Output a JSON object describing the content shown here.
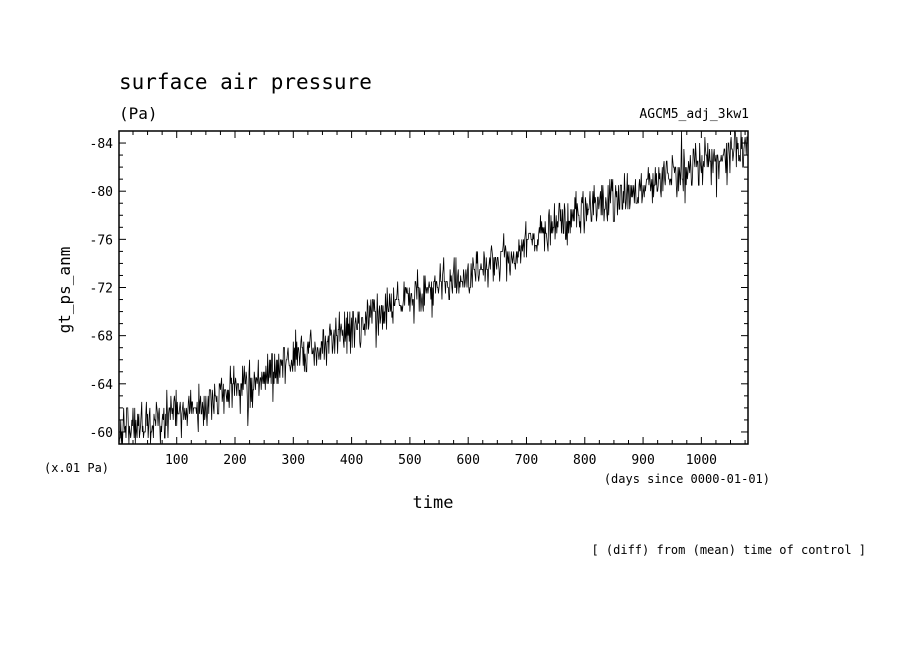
{
  "chart_data": {
    "type": "line",
    "title": "surface air pressure",
    "units": "(Pa)",
    "run_label": "AGCM5_adj_3kw1",
    "ylabel": "gt_ps_anm",
    "y_scale_note": "(x.01 Pa)",
    "xlabel": "time",
    "x_units_note": "(days since 0000-01-01)",
    "footer_note": "[ (diff) from (mean) time of control ]",
    "xlim": [
      1,
      1080
    ],
    "ylim": [
      -59,
      -85
    ],
    "x_ticks": [
      100,
      200,
      300,
      400,
      500,
      600,
      700,
      800,
      900,
      1000
    ],
    "y_ticks": [
      -60,
      -64,
      -68,
      -72,
      -76,
      -80,
      -84
    ],
    "x_tick_labels": [
      "100",
      "200",
      "300",
      "400",
      "500",
      "600",
      "700",
      "800",
      "900",
      "1000"
    ],
    "y_tick_labels": [
      "-60",
      "-64",
      "-68",
      "-72",
      "-76",
      "-80",
      "-84"
    ],
    "grid": false,
    "line_color": "#000000",
    "trend_anchors": [
      {
        "x": 1,
        "y": -60.0
      },
      {
        "x": 100,
        "y": -61.6
      },
      {
        "x": 200,
        "y": -63.3
      },
      {
        "x": 300,
        "y": -66.0
      },
      {
        "x": 400,
        "y": -68.5
      },
      {
        "x": 500,
        "y": -71.3
      },
      {
        "x": 600,
        "y": -73.3
      },
      {
        "x": 700,
        "y": -75.5
      },
      {
        "x": 800,
        "y": -78.5
      },
      {
        "x": 900,
        "y": -80.2
      },
      {
        "x": 1000,
        "y": -82.2
      },
      {
        "x": 1080,
        "y": -83.5
      }
    ],
    "series": [
      {
        "values_sampling": "daily",
        "noise_amplitude": 0.9
      }
    ]
  }
}
